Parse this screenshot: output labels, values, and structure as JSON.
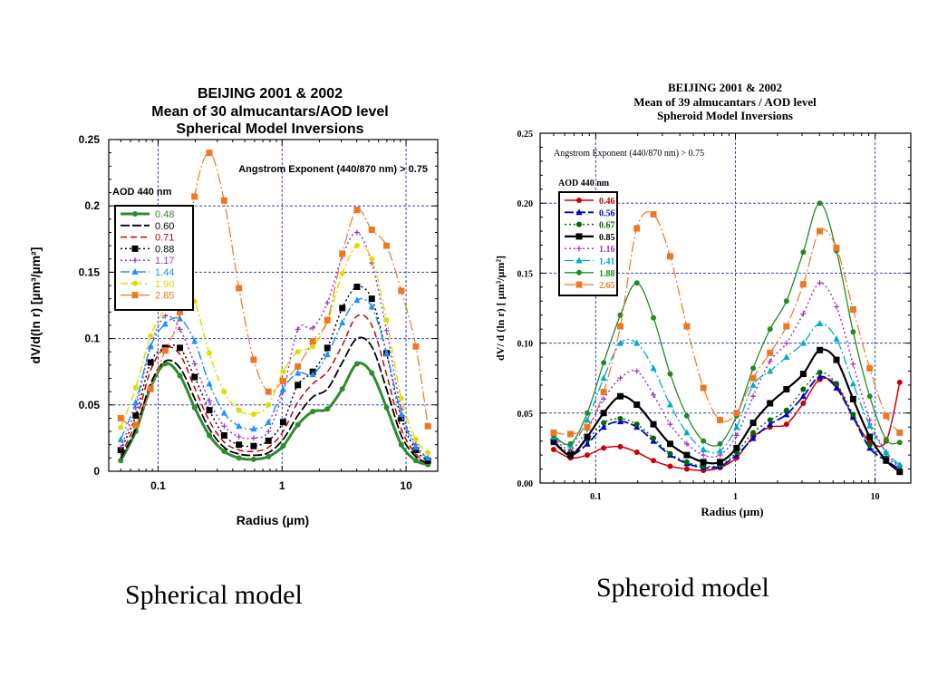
{
  "captions": {
    "left": "Spherical model",
    "right": "Spheroid model"
  },
  "chart_data": [
    {
      "type": "line",
      "title": [
        "BEIJING 2001 & 2002",
        "Mean of 30 almucantars/AOD level",
        "Spherical Model Inversions"
      ],
      "annotation": "Angstrom Exponent (440/870 nm) > 0.75",
      "legend_title": "AOD 440 nm",
      "legend_position": "upper-left",
      "xlabel": "Radius (µm)",
      "ylabel": "dV/d(ln r) [µm³/µm²]",
      "x_scale": "log",
      "xlim": [
        0.04,
        18
      ],
      "ylim": [
        0,
        0.25
      ],
      "xticks": [
        {
          "v": 0.1,
          "label": "0.1"
        },
        {
          "v": 1,
          "label": "1"
        },
        {
          "v": 10,
          "label": "10"
        }
      ],
      "yticks": [
        {
          "v": 0,
          "label": "0"
        },
        {
          "v": 0.05,
          "label": "0.05"
        },
        {
          "v": 0.1,
          "label": "0.1"
        },
        {
          "v": 0.15,
          "label": "0.15"
        },
        {
          "v": 0.2,
          "label": "0.2"
        },
        {
          "v": 0.25,
          "label": "0.25"
        }
      ],
      "grid": true,
      "x": [
        0.05,
        0.066,
        0.087,
        0.114,
        0.15,
        0.197,
        0.259,
        0.341,
        0.449,
        0.59,
        0.776,
        1.02,
        1.34,
        1.77,
        2.32,
        3.06,
        4.02,
        5.29,
        6.96,
        9.15,
        12.0,
        15.0
      ],
      "series": [
        {
          "name": "0.48",
          "color": "#2e8b2e",
          "dash": "",
          "marker": "circle",
          "width": 3,
          "values": [
            0.008,
            0.03,
            0.063,
            0.081,
            0.072,
            0.048,
            0.027,
            0.015,
            0.01,
            0.009,
            0.011,
            0.019,
            0.035,
            0.045,
            0.047,
            0.062,
            0.081,
            0.074,
            0.048,
            0.02,
            0.008,
            0.005
          ]
        },
        {
          "name": "0.60",
          "color": "#000000",
          "dash": "10,3",
          "marker": "none",
          "width": 1.8,
          "values": [
            0.01,
            0.032,
            0.066,
            0.083,
            0.078,
            0.055,
            0.032,
            0.018,
            0.013,
            0.012,
            0.014,
            0.024,
            0.042,
            0.056,
            0.062,
            0.082,
            0.1,
            0.094,
            0.062,
            0.027,
            0.011,
            0.006
          ]
        },
        {
          "name": "0.71",
          "color": "#cc0000",
          "dash": "7,4",
          "marker": "none",
          "width": 1.5,
          "values": [
            0.012,
            0.037,
            0.076,
            0.093,
            0.088,
            0.063,
            0.038,
            0.022,
            0.016,
            0.015,
            0.018,
            0.03,
            0.052,
            0.066,
            0.075,
            0.095,
            0.117,
            0.11,
            0.073,
            0.032,
            0.013,
            0.006
          ]
        },
        {
          "name": "0.88",
          "color": "#000000",
          "dash": "2,3",
          "marker": "square",
          "width": 1.5,
          "values": [
            0.016,
            0.042,
            0.082,
            0.093,
            0.093,
            0.071,
            0.046,
            0.027,
            0.02,
            0.019,
            0.023,
            0.037,
            0.065,
            0.075,
            0.093,
            0.123,
            0.139,
            0.13,
            0.089,
            0.04,
            0.016,
            0.008
          ]
        },
        {
          "name": "1.17",
          "color": "#9932cc",
          "dash": "2,3",
          "marker": "plus",
          "width": 1.5,
          "values": [
            0.018,
            0.048,
            0.094,
            0.117,
            0.107,
            0.081,
            0.053,
            0.034,
            0.026,
            0.025,
            0.03,
            0.06,
            0.107,
            0.108,
            0.127,
            0.162,
            0.18,
            0.157,
            0.106,
            0.047,
            0.02,
            0.01
          ]
        },
        {
          "name": "1.44",
          "color": "#1e90ff",
          "dash": "10,3,2,3",
          "marker": "triangle",
          "width": 1.5,
          "values": [
            0.024,
            0.052,
            0.094,
            0.111,
            0.115,
            0.098,
            0.066,
            0.044,
            0.034,
            0.032,
            0.037,
            0.062,
            0.074,
            0.073,
            0.088,
            0.112,
            0.129,
            0.124,
            0.089,
            0.043,
            0.018,
            0.01
          ]
        },
        {
          "name": "1.90",
          "color": "#dddd00",
          "dash": "8,3,2,3",
          "marker": "circle",
          "width": 1.5,
          "values": [
            0.033,
            0.063,
            0.102,
            0.123,
            0.143,
            0.128,
            0.089,
            0.06,
            0.046,
            0.043,
            0.05,
            0.075,
            0.09,
            0.094,
            0.113,
            0.149,
            0.17,
            0.16,
            0.114,
            0.055,
            0.024,
            0.014
          ]
        },
        {
          "name": "2.85",
          "color": "#ee7722",
          "dash": "12,3,2,3",
          "marker": "square",
          "width": 1.2,
          "values": [
            0.04,
            0.035,
            0.062,
            0.091,
            0.12,
            0.207,
            0.24,
            0.204,
            0.138,
            0.084,
            0.06,
            0.068,
            0.079,
            0.098,
            0.114,
            0.164,
            0.197,
            0.182,
            0.17,
            0.136,
            0.094,
            0.034
          ]
        }
      ]
    },
    {
      "type": "line",
      "title": [
        "BEIJING    2001 & 2002",
        "Mean of 39 almucantars / AOD level",
        "Spheroid Model Inversions"
      ],
      "annotation": "Angstrom Exponent (440/870 nm) > 0.75",
      "legend_title": "AOD  440  nm",
      "legend_position": "upper-left",
      "xlabel": "Radius (µm)",
      "ylabel": "dV/ d (ln r)  [ µm³/µm²]",
      "x_scale": "log",
      "xlim": [
        0.04,
        18
      ],
      "ylim": [
        0,
        0.25
      ],
      "xticks": [
        {
          "v": 0.1,
          "label": "0.1"
        },
        {
          "v": 1,
          "label": "1"
        },
        {
          "v": 10,
          "label": "10"
        }
      ],
      "yticks": [
        {
          "v": 0,
          "label": "0.00"
        },
        {
          "v": 0.05,
          "label": "0.05"
        },
        {
          "v": 0.1,
          "label": "0.10"
        },
        {
          "v": 0.15,
          "label": "0.15"
        },
        {
          "v": 0.2,
          "label": "0.20"
        },
        {
          "v": 0.25,
          "label": "0.25"
        }
      ],
      "grid": true,
      "x": [
        0.05,
        0.066,
        0.087,
        0.114,
        0.15,
        0.197,
        0.259,
        0.341,
        0.449,
        0.59,
        0.776,
        1.02,
        1.34,
        1.77,
        2.32,
        3.06,
        4.02,
        5.29,
        6.96,
        9.15,
        12.0,
        15.0
      ],
      "series": [
        {
          "name": "0.46",
          "color": "#cc0000",
          "dash": "",
          "marker": "circle",
          "width": 1.5,
          "values": [
            0.024,
            0.018,
            0.02,
            0.025,
            0.026,
            0.022,
            0.016,
            0.012,
            0.01,
            0.009,
            0.011,
            0.018,
            0.033,
            0.04,
            0.042,
            0.057,
            0.074,
            0.07,
            0.047,
            0.03,
            0.03,
            0.072
          ]
        },
        {
          "name": "0.56",
          "color": "#0000cc",
          "dash": "10,3",
          "marker": "triangle",
          "width": 1.8,
          "values": [
            0.029,
            0.02,
            0.028,
            0.04,
            0.044,
            0.04,
            0.03,
            0.02,
            0.014,
            0.011,
            0.012,
            0.02,
            0.032,
            0.042,
            0.049,
            0.062,
            0.076,
            0.068,
            0.047,
            0.025,
            0.016,
            0.01
          ]
        },
        {
          "name": "0.67",
          "color": "#006600",
          "dash": "2,3",
          "marker": "circle",
          "width": 1.5,
          "values": [
            0.03,
            0.022,
            0.031,
            0.043,
            0.046,
            0.042,
            0.032,
            0.021,
            0.015,
            0.012,
            0.013,
            0.022,
            0.036,
            0.045,
            0.052,
            0.067,
            0.079,
            0.071,
            0.049,
            0.027,
            0.018,
            0.012
          ]
        },
        {
          "name": "0.85",
          "color": "#000000",
          "dash": "",
          "marker": "square",
          "width": 2.2,
          "values": [
            0.03,
            0.02,
            0.033,
            0.05,
            0.062,
            0.056,
            0.042,
            0.028,
            0.02,
            0.015,
            0.015,
            0.025,
            0.043,
            0.057,
            0.067,
            0.078,
            0.095,
            0.088,
            0.06,
            0.033,
            0.016,
            0.008
          ]
        },
        {
          "name": "1.16",
          "color": "#9932cc",
          "dash": "2,3",
          "marker": "plus",
          "width": 1.5,
          "values": [
            0.032,
            0.024,
            0.038,
            0.06,
            0.075,
            0.08,
            0.063,
            0.042,
            0.028,
            0.02,
            0.02,
            0.034,
            0.062,
            0.087,
            0.1,
            0.121,
            0.143,
            0.126,
            0.085,
            0.045,
            0.022,
            0.012
          ]
        },
        {
          "name": "1.41",
          "color": "#00aacc",
          "dash": "10,3,2,3",
          "marker": "triangle",
          "width": 1.3,
          "values": [
            0.033,
            0.027,
            0.045,
            0.075,
            0.1,
            0.1,
            0.082,
            0.056,
            0.036,
            0.024,
            0.023,
            0.04,
            0.07,
            0.08,
            0.09,
            0.1,
            0.114,
            0.103,
            0.071,
            0.041,
            0.022,
            0.013
          ]
        },
        {
          "name": "1.88",
          "color": "#228b22",
          "dash": "",
          "marker": "circle",
          "width": 1.3,
          "values": [
            0.034,
            0.028,
            0.05,
            0.086,
            0.12,
            0.143,
            0.118,
            0.078,
            0.048,
            0.03,
            0.028,
            0.048,
            0.082,
            0.11,
            0.13,
            0.165,
            0.2,
            0.166,
            0.108,
            0.062,
            0.031,
            0.029
          ]
        },
        {
          "name": "2.65",
          "color": "#ee7722",
          "dash": "12,3,2,3",
          "marker": "square",
          "width": 1.2,
          "values": [
            0.036,
            0.035,
            0.04,
            0.065,
            0.112,
            0.182,
            0.192,
            0.162,
            0.112,
            0.068,
            0.045,
            0.05,
            0.075,
            0.093,
            0.112,
            0.142,
            0.18,
            0.168,
            0.124,
            0.082,
            0.048,
            0.036
          ]
        }
      ]
    }
  ]
}
